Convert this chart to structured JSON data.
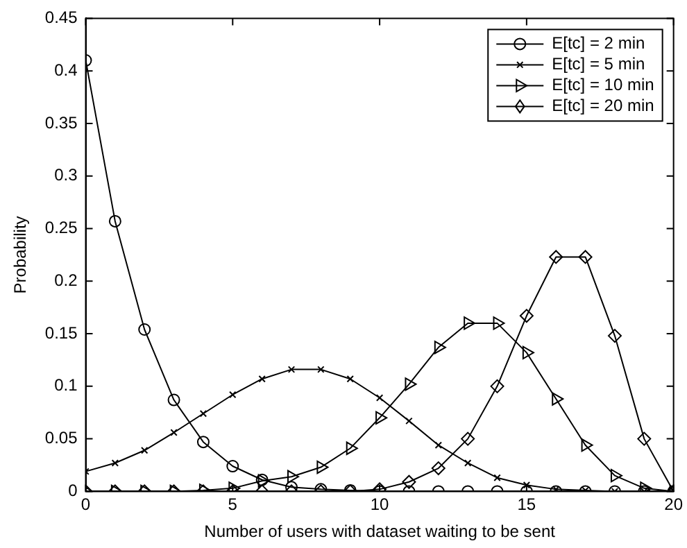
{
  "chart_data": {
    "type": "line",
    "xlabel": "Number of users with dataset waiting to be sent",
    "ylabel": "Probability",
    "x": [
      0,
      1,
      2,
      3,
      4,
      5,
      6,
      7,
      8,
      9,
      10,
      11,
      12,
      13,
      14,
      15,
      16,
      17,
      18,
      19,
      20
    ],
    "xlim": [
      0,
      20
    ],
    "xticks": [
      0,
      5,
      10,
      15,
      20
    ],
    "ylim": [
      0,
      0.45
    ],
    "yticks": [
      0,
      0.05,
      0.1,
      0.15,
      0.2,
      0.25,
      0.3,
      0.35,
      0.4,
      0.45
    ],
    "grid": false,
    "legend": "top right",
    "line_style": "solid",
    "series": [
      {
        "name": "E[tc] = 2 min",
        "color": "#000000",
        "marker": "circle",
        "values": [
          0.41,
          0.257,
          0.154,
          0.087,
          0.047,
          0.024,
          0.011,
          0.004,
          0.002,
          0.001,
          0,
          0,
          0,
          0,
          0,
          0,
          0,
          0,
          0,
          0,
          0
        ]
      },
      {
        "name": "E[tc] = 5 min",
        "color": "#000000",
        "marker": "cross",
        "values": [
          0.019,
          0.027,
          0.039,
          0.056,
          0.074,
          0.092,
          0.107,
          0.116,
          0.116,
          0.107,
          0.089,
          0.067,
          0.044,
          0.027,
          0.013,
          0.006,
          0.002,
          0.001,
          0,
          0,
          0
        ]
      },
      {
        "name": "E[tc] = 10 min",
        "color": "#000000",
        "marker": "triangle",
        "values": [
          0,
          0,
          0,
          0,
          0.001,
          0.003,
          0.01,
          0.014,
          0.023,
          0.041,
          0.07,
          0.102,
          0.137,
          0.16,
          0.16,
          0.132,
          0.088,
          0.044,
          0.015,
          0.003,
          0
        ]
      },
      {
        "name": "E[tc] = 20 min",
        "color": "#000000",
        "marker": "diamond",
        "values": [
          0,
          0,
          0,
          0,
          0,
          0,
          0,
          0,
          0,
          0,
          0.002,
          0.009,
          0.022,
          0.05,
          0.1,
          0.167,
          0.223,
          0.223,
          0.148,
          0.05,
          0
        ]
      }
    ]
  }
}
